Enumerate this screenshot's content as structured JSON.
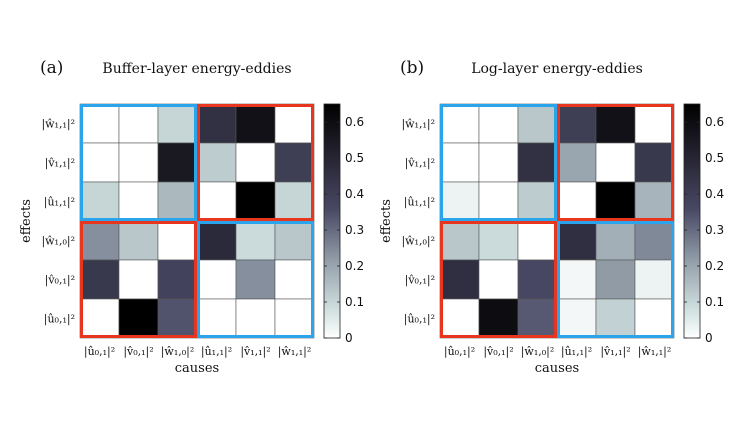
{
  "chart_data": [
    {
      "type": "heatmap",
      "panel_label": "(a)",
      "title": "Buffer-layer energy-eddies",
      "xlabel": "causes",
      "ylabel": "effects",
      "x_categories": [
        "|û₀,₁|²",
        "|v̂₀,₁|²",
        "|ŵ₁,₀|²",
        "|û₁,₁|²",
        "|v̂₁,₁|²",
        "|ŵ₁,₁|²"
      ],
      "y_categories": [
        "|ŵ₁,₁|²",
        "|v̂₁,₁|²",
        "|û₁,₁|²",
        "|ŵ₁,₀|²",
        "|v̂₀,₁|²",
        "|û₀,₁|²"
      ],
      "values": [
        [
          0.0,
          0.0,
          0.1,
          0.45,
          0.58,
          0.0
        ],
        [
          0.0,
          0.0,
          0.55,
          0.12,
          0.0,
          0.4
        ],
        [
          0.1,
          0.0,
          0.16,
          0.0,
          0.66,
          0.1
        ],
        [
          0.24,
          0.13,
          0.0,
          0.48,
          0.09,
          0.13
        ],
        [
          0.42,
          0.0,
          0.38,
          0.0,
          0.24,
          0.0
        ],
        [
          0.0,
          0.66,
          0.34,
          0.0,
          0.0,
          0.0
        ]
      ],
      "colorbar": {
        "min": 0,
        "max": 0.65,
        "ticks": [
          0,
          0.1,
          0.2,
          0.3,
          0.4,
          0.5,
          0.6
        ]
      }
    },
    {
      "type": "heatmap",
      "panel_label": "(b)",
      "title": "Log-layer energy-eddies",
      "xlabel": "causes",
      "ylabel": "effects",
      "x_categories": [
        "|û₀,₁|²",
        "|v̂₀,₁|²",
        "|ŵ₁,₀|²",
        "|û₁,₁|²",
        "|v̂₁,₁|²",
        "|ŵ₁,₁|²"
      ],
      "y_categories": [
        "|ŵ₁,₁|²",
        "|v̂₁,₁|²",
        "|û₁,₁|²",
        "|ŵ₁,₀|²",
        "|v̂₀,₁|²",
        "|û₀,₁|²"
      ],
      "values": [
        [
          0.0,
          0.0,
          0.13,
          0.4,
          0.58,
          0.0
        ],
        [
          0.0,
          0.0,
          0.45,
          0.2,
          0.0,
          0.42
        ],
        [
          0.03,
          0.0,
          0.12,
          0.0,
          0.66,
          0.17
        ],
        [
          0.13,
          0.09,
          0.0,
          0.46,
          0.18,
          0.25
        ],
        [
          0.46,
          0.0,
          0.36,
          0.02,
          0.22,
          0.03
        ],
        [
          0.0,
          0.6,
          0.33,
          0.02,
          0.11,
          0.0
        ]
      ],
      "colorbar": {
        "min": 0,
        "max": 0.65,
        "ticks": [
          0,
          0.1,
          0.2,
          0.3,
          0.4,
          0.5,
          0.6
        ]
      }
    }
  ],
  "colors": {
    "box_blue": "#2aa4ea",
    "box_red": "#e8351d",
    "grid_line": "#555555"
  }
}
